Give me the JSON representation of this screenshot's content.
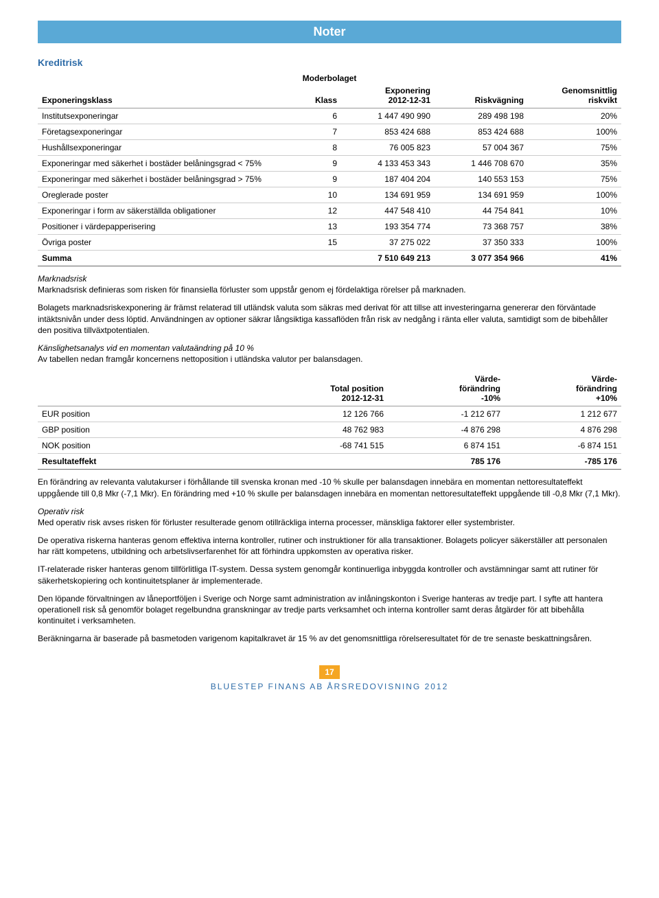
{
  "header": {
    "title": "Noter"
  },
  "section1": {
    "title": "Kreditrisk"
  },
  "table1": {
    "superheader": "Moderbolaget",
    "columns": {
      "c0": "Exponeringsklass",
      "c1": "Klass",
      "c2": "Exponering\n2012-12-31",
      "c3": "Riskvägning",
      "c4": "Genomsnittlig\nriskvikt"
    },
    "rows": [
      {
        "c0": "Institutsexponeringar",
        "c1": "6",
        "c2": "1 447 490 990",
        "c3": "289 498 198",
        "c4": "20%"
      },
      {
        "c0": "Företagsexponeringar",
        "c1": "7",
        "c2": "853 424 688",
        "c3": "853 424 688",
        "c4": "100%"
      },
      {
        "c0": "Hushållsexponeringar",
        "c1": "8",
        "c2": "76 005 823",
        "c3": "57 004 367",
        "c4": "75%"
      },
      {
        "c0": "Exponeringar med säkerhet i bostäder belåningsgrad < 75%",
        "c1": "9",
        "c2": "4 133 453 343",
        "c3": "1 446 708 670",
        "c4": "35%"
      },
      {
        "c0": "Exponeringar med säkerhet i bostäder belåningsgrad > 75%",
        "c1": "9",
        "c2": "187 404 204",
        "c3": "140 553 153",
        "c4": "75%"
      },
      {
        "c0": "Oreglerade poster",
        "c1": "10",
        "c2": "134 691 959",
        "c3": "134 691 959",
        "c4": "100%"
      },
      {
        "c0": "Exponeringar i form av säkerställda obligationer",
        "c1": "12",
        "c2": "447 548 410",
        "c3": "44 754 841",
        "c4": "10%"
      },
      {
        "c0": "Positioner i värdepapperisering",
        "c1": "13",
        "c2": "193 354 774",
        "c3": "73 368 757",
        "c4": "38%"
      },
      {
        "c0": "Övriga poster",
        "c1": "15",
        "c2": "37 275 022",
        "c3": "37 350 333",
        "c4": "100%"
      }
    ],
    "sum": {
      "c0": "Summa",
      "c1": "",
      "c2": "7 510 649 213",
      "c3": "3 077 354 966",
      "c4": "41%"
    }
  },
  "para1_head": "Marknadsrisk",
  "para1": "Marknadsrisk definieras som risken för finansiella förluster som uppstår genom ej fördelaktiga rörelser på marknaden.",
  "para2": "Bolagets marknadsriskexponering är främst relaterad till utländsk valuta som säkras med derivat för att tillse att investeringarna genererar den förväntade intäktsnivån under dess löptid. Användningen av optioner säkrar långsiktiga kassaflöden från risk av nedgång i ränta eller valuta, samtidigt som de bibehåller den positiva tillväxtpotentialen.",
  "para3_head": "Känslighetsanalys vid en momentan valutaändring på 10 %",
  "para3": "Av tabellen nedan framgår koncernens nettoposition i utländska valutor per balansdagen.",
  "table2": {
    "columns": {
      "c0": "",
      "c1": "Total position\n2012-12-31",
      "c2": "Värde-\nförändring\n-10%",
      "c3": "Värde-\nförändring\n+10%"
    },
    "rows": [
      {
        "c0": "EUR position",
        "c1": "12 126 766",
        "c2": "-1 212 677",
        "c3": "1 212 677"
      },
      {
        "c0": "GBP position",
        "c1": "48 762 983",
        "c2": "-4 876 298",
        "c3": "4 876 298"
      },
      {
        "c0": "NOK position",
        "c1": "-68 741 515",
        "c2": "6 874 151",
        "c3": "-6 874 151"
      }
    ],
    "sum": {
      "c0": "Resultateffekt",
      "c1": "",
      "c2": "785 176",
      "c3": "-785 176"
    }
  },
  "para4": "En förändring av relevanta valutakurser i förhållande till svenska kronan med -10 % skulle per balansdagen innebära en momentan nettoresultateffekt uppgående till 0,8 Mkr (-7,1 Mkr). En förändring med +10 % skulle per balansdagen innebära en momentan nettoresultateffekt uppgående till -0,8 Mkr (7,1 Mkr).",
  "para5_head": "Operativ risk",
  "para5": "Med operativ risk avses risken för förluster resulterade genom otillräckliga interna processer, mänskliga faktorer eller systembrister.",
  "para6": "De operativa riskerna hanteras genom effektiva interna kontroller, rutiner och instruktioner för alla transaktioner. Bolagets policyer säkerställer att personalen har rätt kompetens, utbildning och arbetslivserfarenhet för att förhindra uppkomsten av operativa risker.",
  "para7": "IT-relaterade risker hanteras genom tillförlitliga IT-system. Dessa system genomgår kontinuerliga inbyggda kontroller och avstämningar samt att rutiner för säkerhetskopiering och kontinuitetsplaner är implementerade.",
  "para8": "Den löpande förvaltningen av låneportföljen i Sverige och Norge samt administration av inlåningskonton i Sverige hanteras av tredje part. I syfte att hantera operationell risk så genomför bolaget regelbundna granskningar av tredje parts verksamhet och interna kontroller samt deras åtgärder för att bibehålla kontinuitet i verksamheten.",
  "para9": "Beräkningarna är baserade på basmetoden varigenom kapitalkravet är 15 % av det genomsnittliga rörelseresultatet för de tre senaste beskattningsåren.",
  "footer": {
    "page_number": "17",
    "text": "BLUESTEP FINANS AB ÅRSREDOVISNING 2012"
  }
}
